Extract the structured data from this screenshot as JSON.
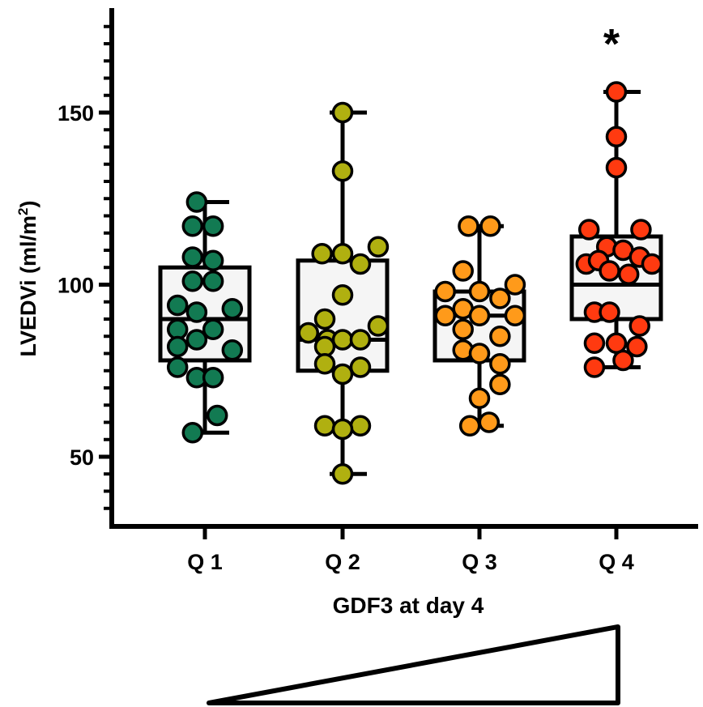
{
  "chart_data": {
    "type": "box-scatter",
    "title": "",
    "xlabel": "GDF3 at day 4",
    "ylabel": "LVEDVi (ml/m",
    "ylabel_sup": "2",
    "ylabel_end": ")",
    "ylim": [
      30,
      180
    ],
    "yticks": [
      50,
      100,
      150
    ],
    "significance_marker": "*",
    "categories": [
      "Q 1",
      "Q 2",
      "Q 3",
      "Q 4"
    ],
    "groups": [
      {
        "name": "Q 1",
        "color": "#127a52",
        "box": {
          "min": 57,
          "q1": 78,
          "median": 90,
          "q3": 105,
          "max": 124
        },
        "points": [
          {
            "x": -0.06,
            "y": 124
          },
          {
            "x": -0.09,
            "y": 117
          },
          {
            "x": 0.06,
            "y": 117
          },
          {
            "x": -0.09,
            "y": 108
          },
          {
            "x": 0.06,
            "y": 107
          },
          {
            "x": -0.09,
            "y": 101
          },
          {
            "x": 0.06,
            "y": 101
          },
          {
            "x": -0.2,
            "y": 94
          },
          {
            "x": -0.06,
            "y": 92
          },
          {
            "x": 0.2,
            "y": 93
          },
          {
            "x": -0.2,
            "y": 87
          },
          {
            "x": 0.06,
            "y": 87
          },
          {
            "x": -0.06,
            "y": 84
          },
          {
            "x": -0.2,
            "y": 82
          },
          {
            "x": 0.2,
            "y": 81
          },
          {
            "x": -0.2,
            "y": 76
          },
          {
            "x": -0.06,
            "y": 73
          },
          {
            "x": 0.06,
            "y": 73
          },
          {
            "x": 0.09,
            "y": 62
          },
          {
            "x": -0.09,
            "y": 57
          }
        ]
      },
      {
        "name": "Q 2",
        "color": "#b0b010",
        "box": {
          "min": 45,
          "q1": 75,
          "median": 84,
          "q3": 107,
          "max": 150
        },
        "points": [
          {
            "x": 0.0,
            "y": 150
          },
          {
            "x": 0.0,
            "y": 133
          },
          {
            "x": 0.26,
            "y": 111
          },
          {
            "x": -0.15,
            "y": 109
          },
          {
            "x": 0.0,
            "y": 109
          },
          {
            "x": 0.13,
            "y": 106
          },
          {
            "x": 0.0,
            "y": 97
          },
          {
            "x": -0.13,
            "y": 90
          },
          {
            "x": 0.26,
            "y": 88
          },
          {
            "x": -0.25,
            "y": 86
          },
          {
            "x": -0.11,
            "y": 84
          },
          {
            "x": 0.0,
            "y": 84
          },
          {
            "x": 0.13,
            "y": 84
          },
          {
            "x": -0.13,
            "y": 82
          },
          {
            "x": -0.13,
            "y": 77
          },
          {
            "x": 0.13,
            "y": 76
          },
          {
            "x": 0.0,
            "y": 74
          },
          {
            "x": -0.13,
            "y": 59
          },
          {
            "x": 0.13,
            "y": 59
          },
          {
            "x": 0.0,
            "y": 58
          },
          {
            "x": 0.0,
            "y": 45
          }
        ]
      },
      {
        "name": "Q 3",
        "color": "#ff9a1a",
        "box": {
          "min": 59,
          "q1": 78,
          "median": 91,
          "q3": 98,
          "max": 117
        },
        "points": [
          {
            "x": -0.08,
            "y": 117
          },
          {
            "x": 0.08,
            "y": 117
          },
          {
            "x": -0.12,
            "y": 104
          },
          {
            "x": -0.25,
            "y": 98
          },
          {
            "x": 0.0,
            "y": 98
          },
          {
            "x": 0.26,
            "y": 100
          },
          {
            "x": -0.12,
            "y": 93
          },
          {
            "x": -0.25,
            "y": 91
          },
          {
            "x": 0.15,
            "y": 96
          },
          {
            "x": 0.0,
            "y": 91
          },
          {
            "x": 0.26,
            "y": 91
          },
          {
            "x": -0.12,
            "y": 87
          },
          {
            "x": 0.15,
            "y": 85
          },
          {
            "x": -0.12,
            "y": 81
          },
          {
            "x": 0.0,
            "y": 80
          },
          {
            "x": 0.15,
            "y": 77
          },
          {
            "x": 0.15,
            "y": 71
          },
          {
            "x": 0.0,
            "y": 67
          },
          {
            "x": -0.07,
            "y": 59
          },
          {
            "x": 0.07,
            "y": 60
          }
        ]
      },
      {
        "name": "Q 4",
        "color": "#ff3a10",
        "box": {
          "min": 76,
          "q1": 90,
          "median": 100,
          "q3": 114,
          "max": 156
        },
        "points": [
          {
            "x": 0.0,
            "y": 156
          },
          {
            "x": 0.0,
            "y": 143
          },
          {
            "x": 0.0,
            "y": 134
          },
          {
            "x": -0.2,
            "y": 116
          },
          {
            "x": 0.18,
            "y": 116
          },
          {
            "x": -0.07,
            "y": 111
          },
          {
            "x": 0.05,
            "y": 110
          },
          {
            "x": -0.22,
            "y": 106
          },
          {
            "x": -0.13,
            "y": 107
          },
          {
            "x": 0.17,
            "y": 108
          },
          {
            "x": 0.26,
            "y": 106
          },
          {
            "x": -0.05,
            "y": 104
          },
          {
            "x": 0.09,
            "y": 103
          },
          {
            "x": -0.16,
            "y": 92
          },
          {
            "x": -0.05,
            "y": 92
          },
          {
            "x": 0.17,
            "y": 88
          },
          {
            "x": -0.16,
            "y": 83
          },
          {
            "x": 0.0,
            "y": 83
          },
          {
            "x": 0.15,
            "y": 82
          },
          {
            "x": 0.05,
            "y": 78
          },
          {
            "x": -0.16,
            "y": 76
          }
        ]
      }
    ],
    "legend": "none",
    "grid": false
  }
}
